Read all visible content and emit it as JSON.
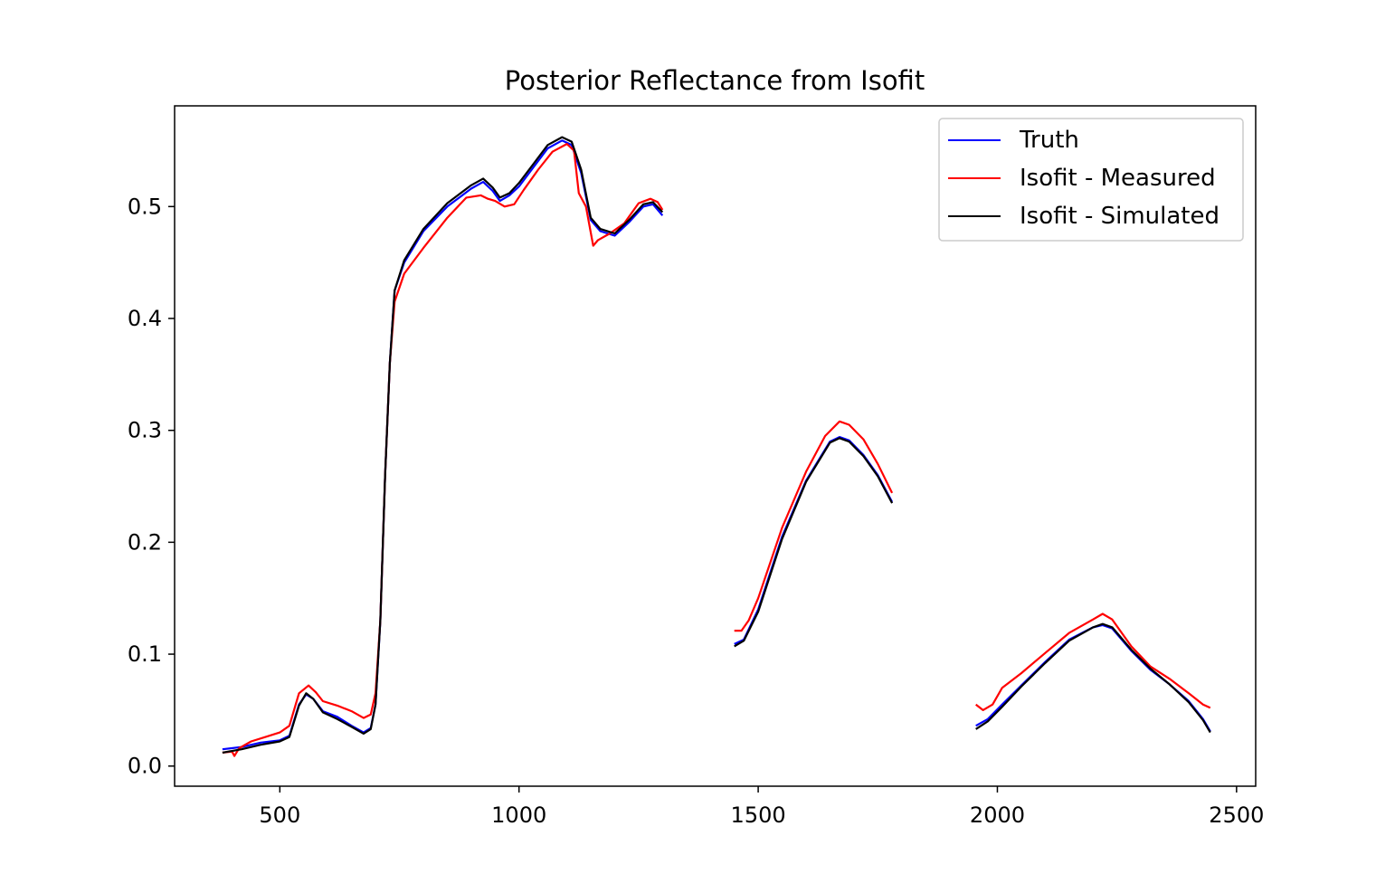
{
  "chart_data": {
    "type": "line",
    "title": "Posterior Reflectance from Isofit",
    "xlabel": "",
    "ylabel": "",
    "xlim": [
      280,
      2540
    ],
    "ylim": [
      -0.018,
      0.59
    ],
    "xticks": [
      500,
      1000,
      1500,
      2000,
      2500
    ],
    "yticks": [
      0.0,
      0.1,
      0.2,
      0.3,
      0.4,
      0.5
    ],
    "xtick_labels": [
      "500",
      "1000",
      "1500",
      "2000",
      "2500"
    ],
    "ytick_labels": [
      "0.0",
      "0.1",
      "0.2",
      "0.3",
      "0.4",
      "0.5"
    ],
    "grid": false,
    "legend_position": "top-right",
    "series": [
      {
        "name": "Truth",
        "color": "#0000ff",
        "segments": [
          [
            [
              380,
              0.015
            ],
            [
              420,
              0.017
            ],
            [
              460,
              0.021
            ],
            [
              500,
              0.023
            ],
            [
              520,
              0.027
            ],
            [
              540,
              0.055
            ],
            [
              555,
              0.064
            ],
            [
              570,
              0.06
            ],
            [
              590,
              0.049
            ],
            [
              620,
              0.044
            ],
            [
              650,
              0.036
            ],
            [
              675,
              0.03
            ],
            [
              690,
              0.034
            ],
            [
              700,
              0.055
            ],
            [
              710,
              0.13
            ],
            [
              720,
              0.26
            ],
            [
              730,
              0.36
            ],
            [
              740,
              0.425
            ],
            [
              760,
              0.45
            ],
            [
              800,
              0.478
            ],
            [
              850,
              0.5
            ],
            [
              900,
              0.516
            ],
            [
              925,
              0.522
            ],
            [
              945,
              0.514
            ],
            [
              960,
              0.505
            ],
            [
              980,
              0.51
            ],
            [
              1000,
              0.518
            ],
            [
              1030,
              0.535
            ],
            [
              1060,
              0.552
            ],
            [
              1090,
              0.559
            ],
            [
              1110,
              0.555
            ],
            [
              1130,
              0.53
            ],
            [
              1150,
              0.488
            ],
            [
              1170,
              0.478
            ],
            [
              1200,
              0.474
            ],
            [
              1230,
              0.486
            ],
            [
              1260,
              0.5
            ],
            [
              1280,
              0.502
            ],
            [
              1300,
              0.492
            ]
          ],
          [
            [
              1450,
              0.109
            ],
            [
              1470,
              0.113
            ],
            [
              1500,
              0.14
            ],
            [
              1550,
              0.205
            ],
            [
              1600,
              0.255
            ],
            [
              1650,
              0.29
            ],
            [
              1670,
              0.294
            ],
            [
              1690,
              0.291
            ],
            [
              1720,
              0.278
            ],
            [
              1750,
              0.26
            ],
            [
              1780,
              0.236
            ]
          ],
          [
            [
              1955,
              0.036
            ],
            [
              1980,
              0.042
            ],
            [
              2010,
              0.055
            ],
            [
              2050,
              0.072
            ],
            [
              2100,
              0.093
            ],
            [
              2150,
              0.113
            ],
            [
              2200,
              0.124
            ],
            [
              2220,
              0.126
            ],
            [
              2240,
              0.123
            ],
            [
              2280,
              0.103
            ],
            [
              2320,
              0.086
            ],
            [
              2360,
              0.073
            ],
            [
              2400,
              0.058
            ],
            [
              2430,
              0.042
            ],
            [
              2445,
              0.031
            ]
          ]
        ]
      },
      {
        "name": "Isofit - Measured",
        "color": "#ff0000",
        "segments": [
          [
            [
              380,
              0.012
            ],
            [
              400,
              0.013
            ],
            [
              405,
              0.009
            ],
            [
              415,
              0.016
            ],
            [
              440,
              0.022
            ],
            [
              470,
              0.026
            ],
            [
              500,
              0.03
            ],
            [
              520,
              0.036
            ],
            [
              540,
              0.065
            ],
            [
              560,
              0.072
            ],
            [
              575,
              0.066
            ],
            [
              590,
              0.058
            ],
            [
              620,
              0.054
            ],
            [
              650,
              0.049
            ],
            [
              675,
              0.043
            ],
            [
              690,
              0.046
            ],
            [
              700,
              0.065
            ],
            [
              710,
              0.13
            ],
            [
              720,
              0.26
            ],
            [
              730,
              0.36
            ],
            [
              740,
              0.415
            ],
            [
              760,
              0.44
            ],
            [
              800,
              0.463
            ],
            [
              850,
              0.49
            ],
            [
              890,
              0.508
            ],
            [
              920,
              0.51
            ],
            [
              935,
              0.507
            ],
            [
              950,
              0.505
            ],
            [
              970,
              0.5
            ],
            [
              990,
              0.502
            ],
            [
              1010,
              0.515
            ],
            [
              1040,
              0.533
            ],
            [
              1070,
              0.549
            ],
            [
              1100,
              0.556
            ],
            [
              1115,
              0.55
            ],
            [
              1125,
              0.512
            ],
            [
              1140,
              0.5
            ],
            [
              1155,
              0.465
            ],
            [
              1165,
              0.47
            ],
            [
              1190,
              0.476
            ],
            [
              1220,
              0.485
            ],
            [
              1250,
              0.503
            ],
            [
              1275,
              0.507
            ],
            [
              1290,
              0.504
            ],
            [
              1300,
              0.497
            ]
          ],
          [
            [
              1450,
              0.121
            ],
            [
              1465,
              0.121
            ],
            [
              1480,
              0.13
            ],
            [
              1500,
              0.15
            ],
            [
              1550,
              0.213
            ],
            [
              1600,
              0.263
            ],
            [
              1640,
              0.295
            ],
            [
              1670,
              0.308
            ],
            [
              1690,
              0.305
            ],
            [
              1720,
              0.292
            ],
            [
              1750,
              0.27
            ],
            [
              1780,
              0.244
            ]
          ],
          [
            [
              1955,
              0.055
            ],
            [
              1970,
              0.05
            ],
            [
              1990,
              0.055
            ],
            [
              2010,
              0.07
            ],
            [
              2050,
              0.083
            ],
            [
              2100,
              0.101
            ],
            [
              2150,
              0.119
            ],
            [
              2200,
              0.131
            ],
            [
              2220,
              0.136
            ],
            [
              2240,
              0.131
            ],
            [
              2280,
              0.107
            ],
            [
              2320,
              0.089
            ],
            [
              2360,
              0.078
            ],
            [
              2400,
              0.065
            ],
            [
              2430,
              0.055
            ],
            [
              2445,
              0.052
            ]
          ]
        ]
      },
      {
        "name": "Isofit - Simulated",
        "color": "#000000",
        "segments": [
          [
            [
              380,
              0.012
            ],
            [
              420,
              0.015
            ],
            [
              460,
              0.019
            ],
            [
              500,
              0.022
            ],
            [
              520,
              0.026
            ],
            [
              540,
              0.054
            ],
            [
              555,
              0.065
            ],
            [
              570,
              0.06
            ],
            [
              590,
              0.048
            ],
            [
              620,
              0.042
            ],
            [
              650,
              0.035
            ],
            [
              675,
              0.029
            ],
            [
              690,
              0.033
            ],
            [
              700,
              0.055
            ],
            [
              710,
              0.13
            ],
            [
              720,
              0.26
            ],
            [
              730,
              0.36
            ],
            [
              740,
              0.425
            ],
            [
              760,
              0.452
            ],
            [
              800,
              0.48
            ],
            [
              850,
              0.503
            ],
            [
              900,
              0.519
            ],
            [
              925,
              0.525
            ],
            [
              945,
              0.517
            ],
            [
              960,
              0.508
            ],
            [
              980,
              0.512
            ],
            [
              1000,
              0.521
            ],
            [
              1030,
              0.538
            ],
            [
              1060,
              0.555
            ],
            [
              1090,
              0.562
            ],
            [
              1110,
              0.558
            ],
            [
              1130,
              0.533
            ],
            [
              1150,
              0.49
            ],
            [
              1170,
              0.48
            ],
            [
              1200,
              0.476
            ],
            [
              1230,
              0.488
            ],
            [
              1260,
              0.502
            ],
            [
              1280,
              0.504
            ],
            [
              1300,
              0.495
            ]
          ],
          [
            [
              1450,
              0.107
            ],
            [
              1470,
              0.112
            ],
            [
              1500,
              0.138
            ],
            [
              1550,
              0.203
            ],
            [
              1600,
              0.254
            ],
            [
              1650,
              0.289
            ],
            [
              1670,
              0.293
            ],
            [
              1690,
              0.29
            ],
            [
              1720,
              0.277
            ],
            [
              1750,
              0.259
            ],
            [
              1780,
              0.235
            ]
          ],
          [
            [
              1955,
              0.033
            ],
            [
              1980,
              0.04
            ],
            [
              2010,
              0.053
            ],
            [
              2050,
              0.071
            ],
            [
              2100,
              0.092
            ],
            [
              2150,
              0.112
            ],
            [
              2200,
              0.124
            ],
            [
              2220,
              0.127
            ],
            [
              2240,
              0.124
            ],
            [
              2280,
              0.104
            ],
            [
              2320,
              0.087
            ],
            [
              2360,
              0.073
            ],
            [
              2400,
              0.057
            ],
            [
              2430,
              0.041
            ],
            [
              2445,
              0.03
            ]
          ]
        ]
      }
    ]
  }
}
